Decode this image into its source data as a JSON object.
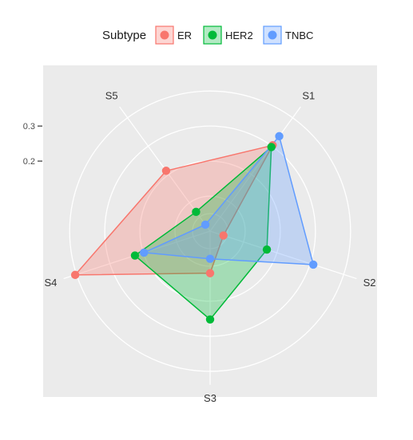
{
  "chart_data": {
    "type": "radar",
    "axes": [
      "S1",
      "S2",
      "S3",
      "S4",
      "S5"
    ],
    "legend": {
      "title": "Subtype",
      "position": "top",
      "entries": [
        "ER",
        "HER2",
        "TNBC"
      ]
    },
    "series": [
      {
        "name": "ER",
        "color": "#F8766D",
        "values": [
          0.303,
          0.04,
          0.12,
          0.404,
          0.213
        ]
      },
      {
        "name": "HER2",
        "color": "#00BA38",
        "values": [
          0.297,
          0.17,
          0.252,
          0.225,
          0.068
        ]
      },
      {
        "name": "TNBC",
        "color": "#619CFF",
        "values": [
          0.335,
          0.309,
          0.079,
          0.198,
          0.023
        ]
      }
    ],
    "radial_ticks": [
      {
        "value": 0.2,
        "label": "0.2"
      },
      {
        "value": 0.3,
        "label": "0.3"
      }
    ],
    "grid_values": [
      0.05,
      0.1,
      0.2,
      0.3,
      0.4
    ],
    "r_range": [
      0,
      0.43
    ],
    "panel_background": "#EBEBEB",
    "grid": true
  }
}
